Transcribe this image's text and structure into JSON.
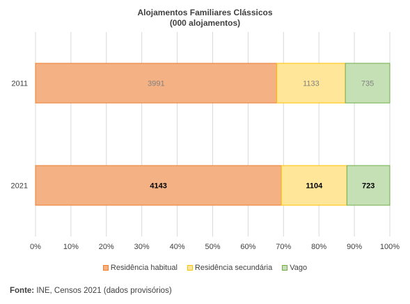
{
  "chart_data": {
    "type": "bar",
    "orientation": "horizontal",
    "stacked": "percent",
    "title": "Alojamentos Familiares Clássicos",
    "subtitle": "(000 alojamentos)",
    "categories": [
      "2011",
      "2021"
    ],
    "series": [
      {
        "name": "Residência habitual",
        "values": [
          3991,
          4143
        ],
        "color": "#F4B183",
        "stroke": "#ED7D31"
      },
      {
        "name": "Residência secundária",
        "values": [
          1133,
          1104
        ],
        "color": "#FFE699",
        "stroke": "#FFC000"
      },
      {
        "name": "Vago",
        "values": [
          735,
          723
        ],
        "color": "#C5E0B4",
        "stroke": "#70AD47"
      }
    ],
    "label_style": [
      {
        "bold": false,
        "color": "#808080"
      },
      {
        "bold": true,
        "color": "#000000"
      }
    ],
    "x_ticks": [
      "0%",
      "10%",
      "20%",
      "30%",
      "40%",
      "50%",
      "60%",
      "70%",
      "80%",
      "90%",
      "100%"
    ],
    "xlim": [
      0,
      100
    ],
    "grid": true,
    "legend_position": "bottom"
  },
  "footer": {
    "label": "Fonte:",
    "text": " INE, Censos 2021 (dados provisórios)"
  }
}
